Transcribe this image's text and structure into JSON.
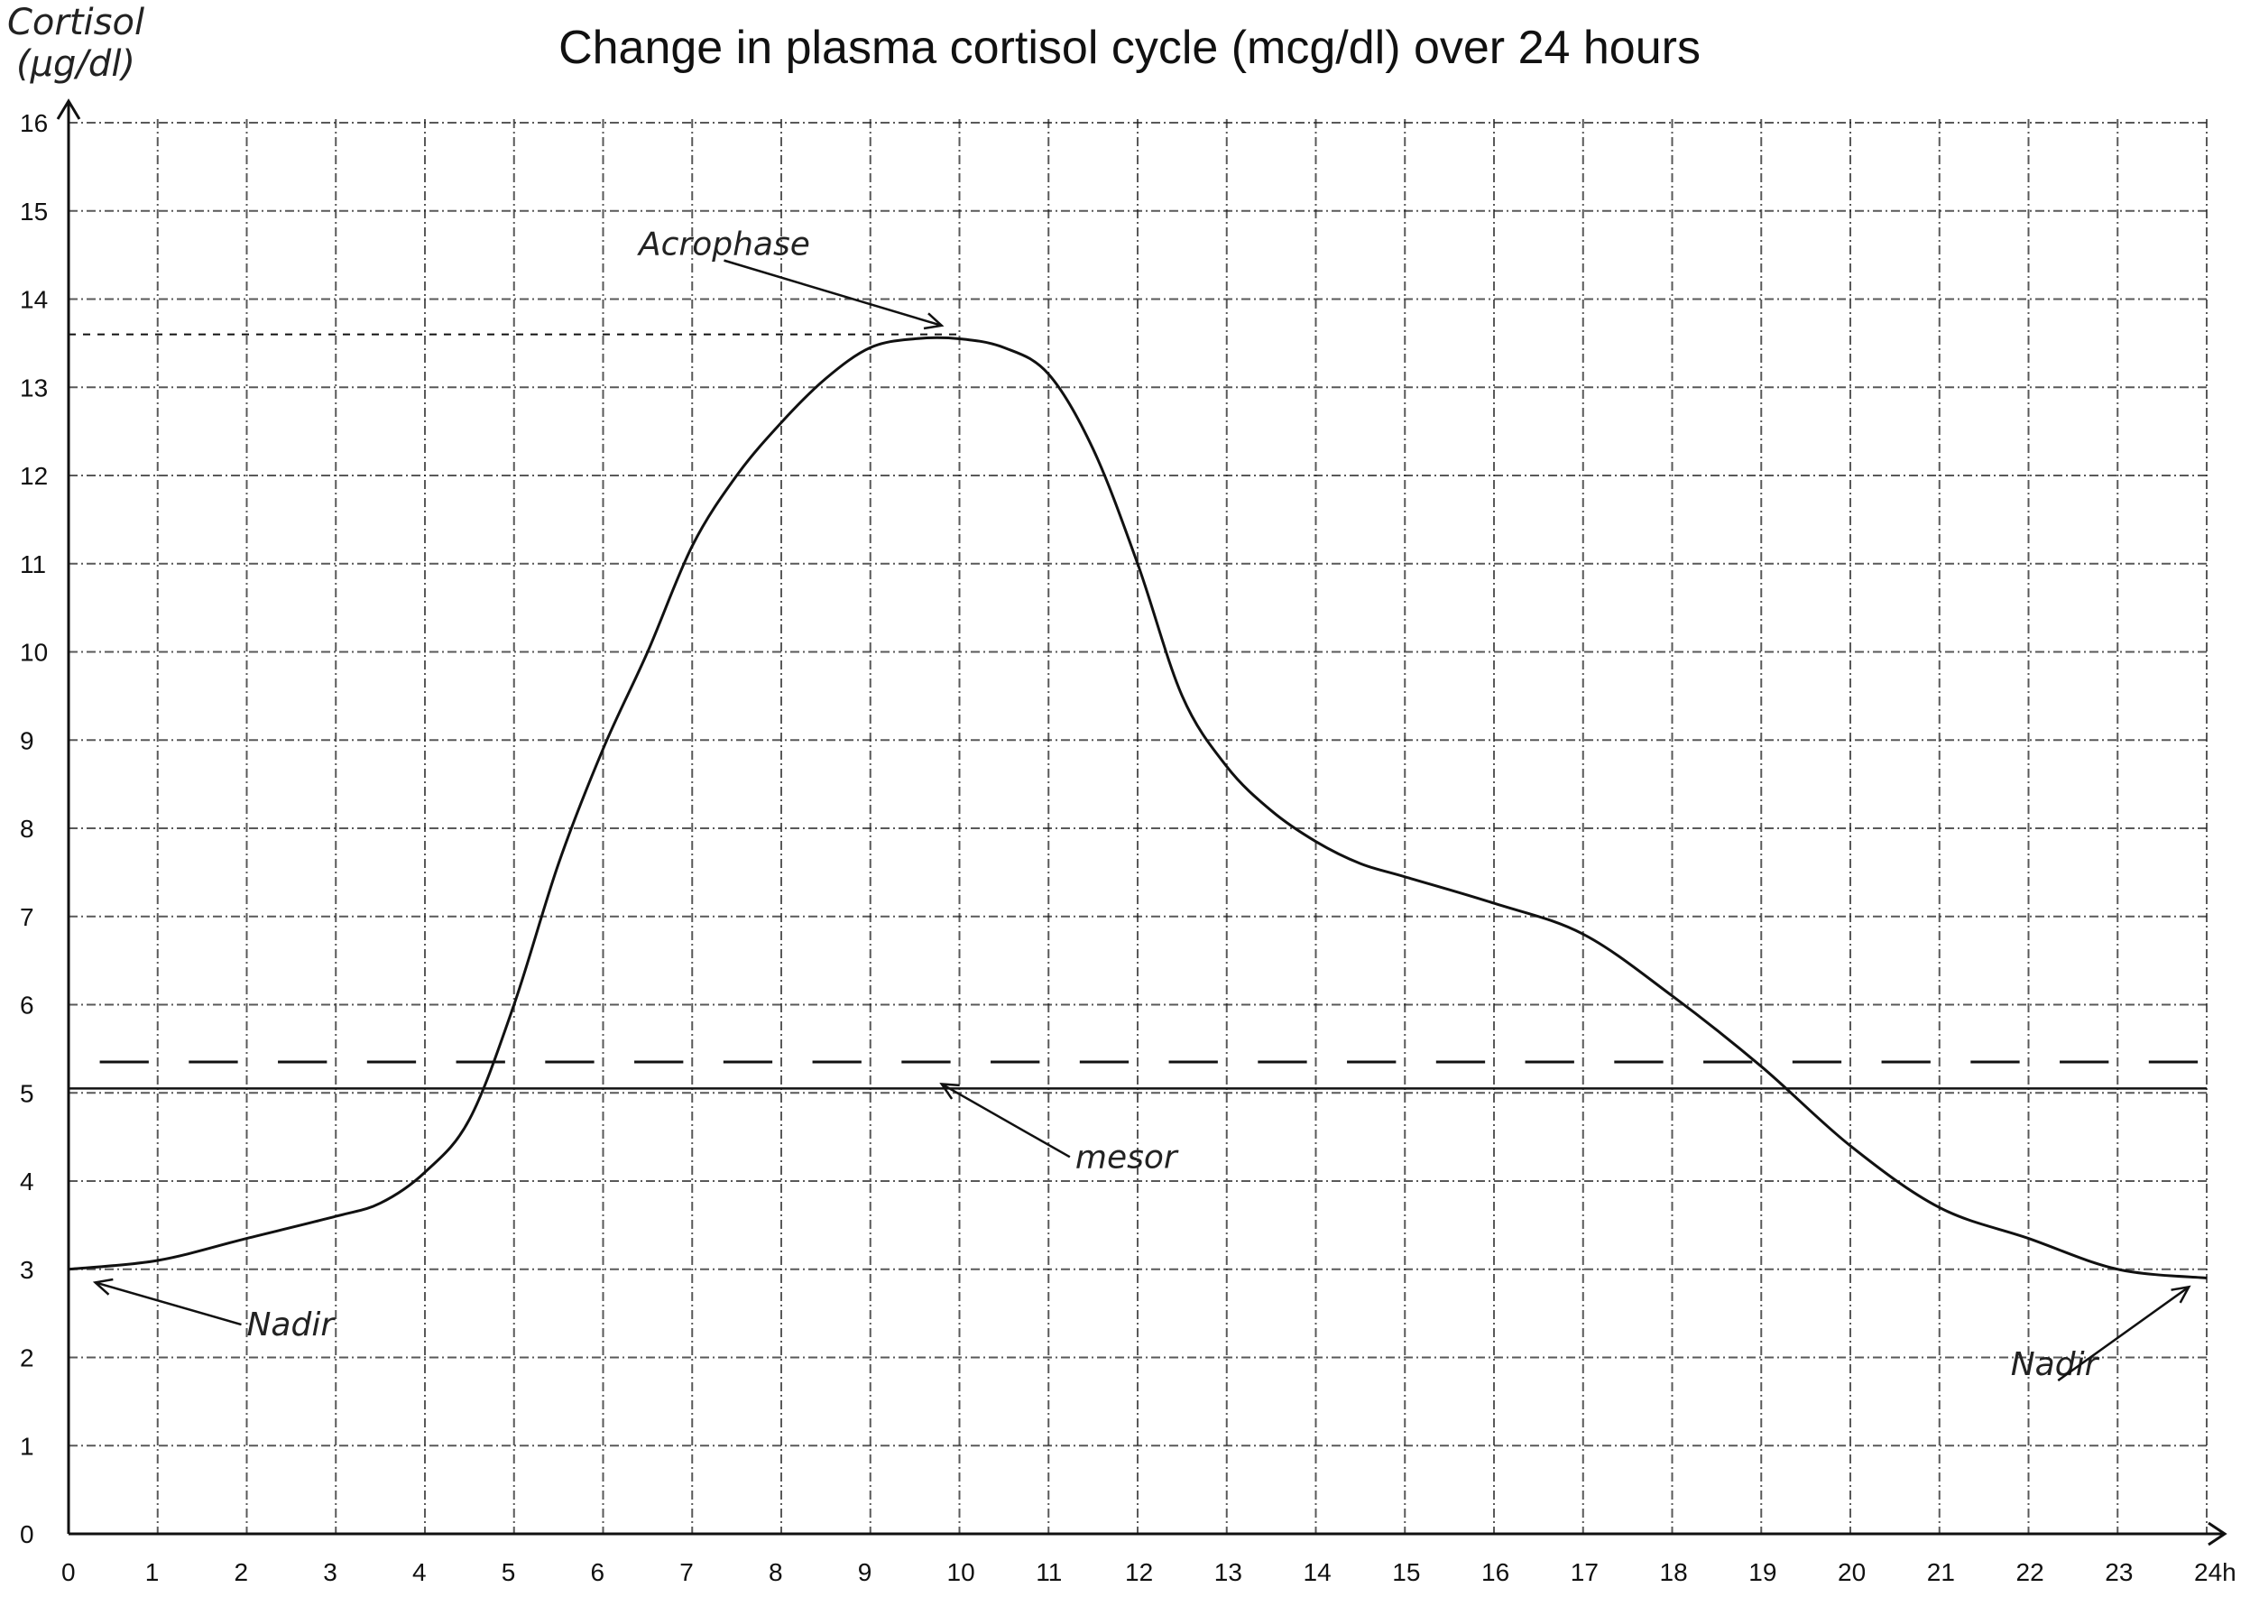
{
  "chart_data": {
    "type": "line",
    "title": "Change in plasma cortisol cycle (mcg/dl) over 24 hours",
    "ylabel_line1": "Cortisol",
    "ylabel_line2": "(µg/dl)",
    "xlabel": "",
    "x_ticks": [
      "0",
      "1",
      "2",
      "3",
      "4",
      "5",
      "6",
      "7",
      "8",
      "9",
      "10",
      "11",
      "12",
      "13",
      "14",
      "15",
      "16",
      "17",
      "18",
      "19",
      "20",
      "21",
      "22",
      "23",
      "24h"
    ],
    "y_ticks": [
      "0",
      "1",
      "2",
      "3",
      "4",
      "5",
      "6",
      "7",
      "8",
      "9",
      "10",
      "11",
      "12",
      "13",
      "14",
      "15",
      "16"
    ],
    "xlim": [
      0,
      24
    ],
    "ylim": [
      0,
      16
    ],
    "grid": true,
    "series": [
      {
        "x": [
          0,
          1,
          2,
          3,
          3.5,
          4,
          4.5,
          5,
          5.5,
          6,
          6.5,
          7,
          7.5,
          8,
          8.5,
          9,
          9.5,
          10,
          10.5,
          11,
          11.5,
          12,
          12.5,
          13,
          13.5,
          14,
          14.5,
          15,
          16,
          17,
          18,
          19,
          20,
          21,
          22,
          23,
          24
        ],
        "y": [
          3.0,
          3.1,
          3.35,
          3.6,
          3.75,
          4.1,
          4.7,
          6.0,
          7.6,
          8.9,
          10.0,
          11.2,
          12.0,
          12.6,
          13.1,
          13.45,
          13.55,
          13.55,
          13.45,
          13.15,
          12.3,
          11.0,
          9.5,
          8.7,
          8.2,
          7.85,
          7.6,
          7.45,
          7.15,
          6.8,
          6.1,
          5.3,
          4.4,
          3.7,
          3.35,
          3.0,
          2.9
        ]
      }
    ],
    "mesor": 5.05,
    "mesor_dashes_y": 5.35,
    "acrophase": {
      "x": 10,
      "y": 13.6
    },
    "annotations": [
      {
        "text": "Acrophase",
        "label_x": 6.4,
        "label_y": 14.5,
        "point_x": 9.8,
        "point_y": 13.7
      },
      {
        "text": "mesor",
        "label_x": 11.3,
        "label_y": 4.15,
        "point_x": 9.8,
        "point_y": 5.1
      },
      {
        "text": "Nadir",
        "label_x": 2.0,
        "label_y": 2.25,
        "point_x": 0.3,
        "point_y": 2.85
      },
      {
        "text": "Nadir",
        "label_x": 21.8,
        "label_y": 1.8,
        "point_x": 23.8,
        "point_y": 2.8
      }
    ]
  }
}
